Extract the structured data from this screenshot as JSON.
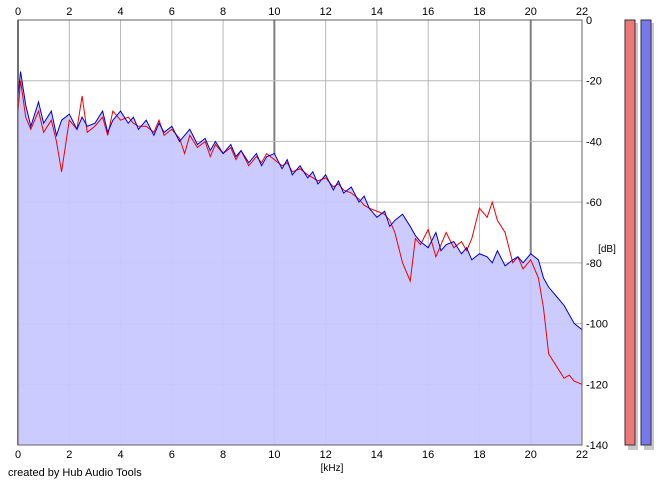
{
  "chart_data": {
    "type": "area",
    "x_unit": "[kHz]",
    "y_unit": "[dB]",
    "xlim": [
      0,
      22
    ],
    "ylim": [
      -140,
      0
    ],
    "x_ticks": [
      "0",
      "2",
      "4",
      "6",
      "8",
      "10",
      "12",
      "14",
      "16",
      "18",
      "20",
      "22"
    ],
    "y_ticks": [
      "0",
      "-20",
      "-40",
      "-60",
      "-80",
      "-100",
      "-120",
      "-140"
    ],
    "grid": true,
    "series": [
      {
        "color": "#0000cc",
        "x": [
          0,
          0.1,
          0.3,
          0.5,
          0.8,
          1,
          1.3,
          1.5,
          1.7,
          2,
          2.3,
          2.5,
          2.7,
          3,
          3.3,
          3.5,
          3.7,
          4,
          4.3,
          4.5,
          4.7,
          5,
          5.3,
          5.5,
          5.7,
          6,
          6.3,
          6.5,
          6.7,
          7,
          7.3,
          7.5,
          7.7,
          8,
          8.3,
          8.5,
          8.7,
          9,
          9.3,
          9.5,
          9.7,
          10,
          10.3,
          10.5,
          10.7,
          11,
          11.3,
          11.5,
          11.7,
          12,
          12.3,
          12.5,
          12.7,
          13,
          13.3,
          13.5,
          13.7,
          14,
          14.3,
          14.5,
          14.7,
          15,
          15.3,
          15.5,
          15.7,
          16,
          16.3,
          16.5,
          16.7,
          17,
          17.3,
          17.5,
          17.7,
          18,
          18.3,
          18.5,
          18.7,
          19,
          19.3,
          19.5,
          19.7,
          20,
          20.3,
          20.5,
          20.7,
          21,
          21.3,
          21.5,
          21.7,
          22
        ],
        "y": [
          -25,
          -17,
          -28,
          -35,
          -27,
          -34,
          -30,
          -38,
          -33,
          -31,
          -36,
          -32,
          -35,
          -34,
          -30,
          -37,
          -33,
          -30,
          -34,
          -32,
          -36,
          -33,
          -38,
          -34,
          -37,
          -35,
          -40,
          -38,
          -36,
          -41,
          -39,
          -43,
          -40,
          -44,
          -41,
          -45,
          -43,
          -47,
          -44,
          -48,
          -45,
          -44,
          -49,
          -46,
          -51,
          -48,
          -52,
          -50,
          -54,
          -51,
          -56,
          -53,
          -57,
          -55,
          -60,
          -58,
          -62,
          -65,
          -63,
          -68,
          -66,
          -64,
          -68,
          -71,
          -73,
          -75,
          -70,
          -76,
          -74,
          -73,
          -77,
          -75,
          -79,
          -77,
          -78,
          -80,
          -76,
          -81,
          -79,
          -78,
          -80,
          -77,
          -79,
          -85,
          -88,
          -91,
          -94,
          -97,
          -100,
          -102
        ],
        "fill": "#c8c8ff"
      },
      {
        "color": "#ee0000",
        "x": [
          0,
          0.1,
          0.3,
          0.5,
          0.8,
          1,
          1.3,
          1.5,
          1.7,
          2,
          2.3,
          2.5,
          2.7,
          3,
          3.3,
          3.5,
          3.7,
          4,
          4.3,
          4.5,
          4.7,
          5,
          5.3,
          5.5,
          5.7,
          6,
          6.3,
          6.5,
          6.7,
          7,
          7.3,
          7.5,
          7.7,
          8,
          8.3,
          8.5,
          8.7,
          9,
          9.3,
          9.5,
          9.7,
          10,
          10.3,
          10.5,
          10.7,
          11,
          11.3,
          11.5,
          11.7,
          12,
          12.3,
          12.5,
          12.7,
          13,
          13.3,
          13.5,
          13.7,
          14,
          14.3,
          14.5,
          14.7,
          15,
          15.3,
          15.5,
          15.7,
          16,
          16.3,
          16.5,
          16.7,
          17,
          17.3,
          17.5,
          17.7,
          18,
          18.3,
          18.5,
          18.7,
          19,
          19.3,
          19.5,
          19.7,
          20,
          20.3,
          20.5,
          20.7,
          21,
          21.3,
          21.5,
          21.7,
          22
        ],
        "y": [
          -30,
          -20,
          -32,
          -36,
          -30,
          -37,
          -33,
          -40,
          -50,
          -33,
          -36,
          -25,
          -37,
          -35,
          -32,
          -38,
          -30,
          -33,
          -32,
          -34,
          -35,
          -35,
          -37,
          -33,
          -38,
          -36,
          -39,
          -44,
          -38,
          -42,
          -40,
          -45,
          -41,
          -44,
          -42,
          -46,
          -43,
          -48,
          -45,
          -47,
          -44,
          -46,
          -48,
          -47,
          -50,
          -49,
          -51,
          -52,
          -53,
          -52,
          -55,
          -54,
          -56,
          -57,
          -59,
          -61,
          -62,
          -63,
          -64,
          -66,
          -70,
          -80,
          -86,
          -72,
          -74,
          -69,
          -78,
          -74,
          -70,
          -75,
          -73,
          -76,
          -72,
          -62,
          -65,
          -60,
          -66,
          -70,
          -80,
          -78,
          -82,
          -79,
          -85,
          -95,
          -110,
          -114,
          -118,
          -117,
          -119,
          -120
        ]
      }
    ]
  },
  "credit": "created by Hub Audio Tools",
  "meters": [
    {
      "color": "#ee7777"
    },
    {
      "color": "#7777ee"
    }
  ]
}
